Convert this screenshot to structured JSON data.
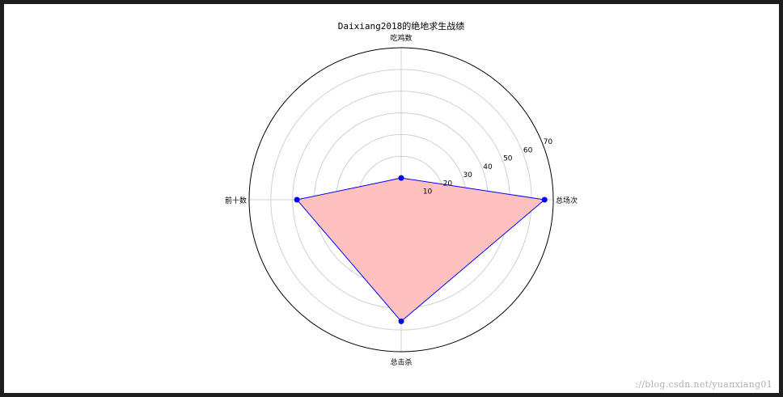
{
  "chart_data": {
    "type": "radar",
    "title": "Daixiang2018的绝地求生战绩",
    "categories": [
      "总场次",
      "吃鸡数",
      "前十数",
      "总击杀"
    ],
    "values": [
      66,
      10,
      48,
      56
    ],
    "rmax": 70,
    "rticks": [
      10,
      20,
      30,
      40,
      50,
      60,
      70
    ],
    "grid": true,
    "colors": {
      "fill": "#ffc0c0",
      "line": "#0000ff",
      "marker": "#0000ff",
      "grid": "#d0d0d0",
      "frame": "#000000"
    }
  },
  "watermark": "://blog.csdn.net/yuanxiang01"
}
